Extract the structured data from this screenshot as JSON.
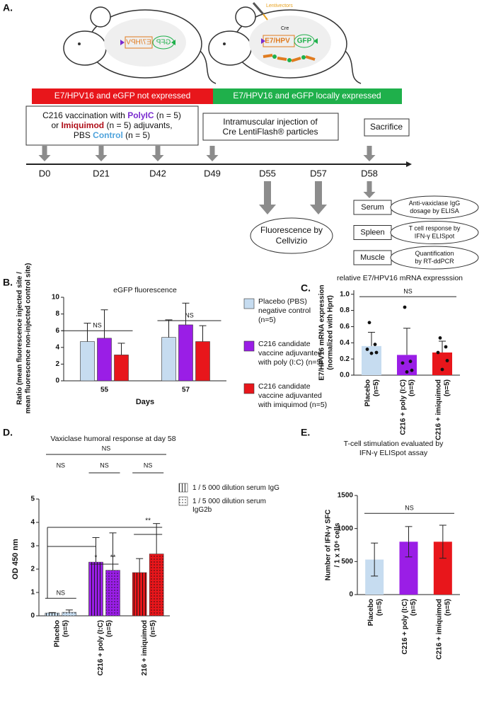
{
  "panel_a": {
    "label": "A.",
    "mouse_left": {
      "gene": "E7/HPV",
      "reporter": "GFP"
    },
    "mouse_right": {
      "vector": "Lentivectors",
      "cre": "Cre",
      "gene": "E7/HPV",
      "reporter": "GFP"
    },
    "phase_off": "E7/HPV16 and eGFP not expressed",
    "phase_on": "E7/HPV16 and eGFP locally expressed",
    "step_vaccination": [
      [
        "C216 vaccination with ",
        "PolyIC",
        " (n = 5)"
      ],
      [
        "or ",
        "Imiquimod",
        " (n = 5) adjuvants,"
      ],
      [
        "PBS ",
        "Control",
        " (n = 5)"
      ]
    ],
    "step_injection": [
      "Intramuscular injection of",
      "Cre LentiFlash® particles"
    ],
    "step_sacrifice": "Sacrifice",
    "days": [
      "D0",
      "D21",
      "D42",
      "D49",
      "D55",
      "D57",
      "D58"
    ],
    "readout": [
      "Fluorescence by",
      "Cellvizio"
    ],
    "analyses": [
      {
        "tissue": "Serum",
        "assay": [
          "Anti-vaxiclase IgG",
          "dosage by ELISA"
        ]
      },
      {
        "tissue": "Spleen",
        "assay": [
          "T cell response by",
          "IFN-γ ELISpot"
        ]
      },
      {
        "tissue": "Muscle",
        "assay": [
          "Quantification",
          "by RT-ddPCR"
        ]
      }
    ]
  },
  "chart_data": [
    {
      "type": "bar",
      "label": "B.",
      "title": "eGFP fluorescence",
      "ylabel": [
        "Ratio (mean fluorescence injected site /",
        "mean fluorescence non-injected control site)"
      ],
      "xlabel": "Days",
      "categories": [
        "55",
        "57"
      ],
      "series": [
        {
          "name": "Placebo (PBS) negative control (n=5)",
          "color": "#c6dcf0",
          "values": [
            4.7,
            5.2
          ],
          "errors": [
            2.2,
            2.1
          ]
        },
        {
          "name": "C216 candidate vaccine adjuvanted with poly (I:C) (n=5)",
          "color": "#9a1ee6",
          "values": [
            5.1,
            6.7
          ],
          "errors": [
            3.4,
            2.6
          ]
        },
        {
          "name": "C216 candidate vaccine adjuvanted with imiquimod (n=5)",
          "color": "#e8161b",
          "values": [
            3.1,
            4.7
          ],
          "errors": [
            1.4,
            1.9
          ]
        }
      ],
      "ylim": [
        0,
        10
      ],
      "yticks": [
        0,
        2,
        4,
        6,
        8,
        10
      ],
      "annotations": [
        "NS",
        "NS"
      ]
    },
    {
      "type": "bar",
      "label": "C.",
      "title": "relative E7/HPV16 mRNA expresssion",
      "ylabel": [
        "E7/HPV16 mRNA expression",
        "(normalized with Hprt)"
      ],
      "categories": [
        "Placebo",
        "C216 + poly (I:C)",
        "C216 + imiquimod"
      ],
      "category_n": [
        "(n=5)",
        "(n=5)",
        "(n=5)"
      ],
      "colors": [
        "#c6dcf0",
        "#9a1ee6",
        "#e8161b"
      ],
      "values": [
        0.36,
        0.25,
        0.28
      ],
      "errors": [
        0.17,
        0.33,
        0.14
      ],
      "points": [
        [
          0.65,
          0.38,
          0.32,
          0.28,
          0.27
        ],
        [
          0.84,
          0.17,
          0.15,
          0.06,
          0.04
        ],
        [
          0.46,
          0.35,
          0.28,
          0.18,
          0.07
        ]
      ],
      "ylim": [
        0,
        1.05
      ],
      "yticks": [
        {
          "value": 0,
          "label": "0.0"
        },
        {
          "value": 0.2,
          "label": "0.2"
        },
        {
          "value": 0.4,
          "label": "0.4"
        },
        {
          "value": 0.6,
          "label": "0.6"
        },
        {
          "value": 0.8,
          "label": "0.8"
        },
        {
          "value": 1,
          "label": "1.0"
        }
      ],
      "annotations": [
        "NS"
      ]
    },
    {
      "type": "bar",
      "label": "D.",
      "title": "Vaxiclase humoral response at day 58",
      "ylabel": "OD 450 nm",
      "categories": [
        "Placebo",
        "C216 + poly (I:C)",
        "216 + imiquimod"
      ],
      "category_n": [
        "(n=5)",
        "(n=5)",
        "(n=5)"
      ],
      "category_colors": [
        "#c6dcf0",
        "#9a1ee6",
        "#e8161b"
      ],
      "series": [
        {
          "name": "1 / 5 000 dilution serum IgG",
          "pattern": "stripes",
          "values": [
            0.12,
            2.3,
            1.85
          ],
          "errors": [
            0.02,
            1.05,
            0.6
          ]
        },
        {
          "name": "1 / 5 000 dilution serum IgG2b",
          "pattern": "dots",
          "values": [
            0.15,
            1.95,
            2.65
          ],
          "errors": [
            0.1,
            1.6,
            1.3
          ]
        }
      ],
      "ylim": [
        0,
        5
      ],
      "yticks": [
        0,
        1,
        2,
        3,
        4,
        5
      ],
      "annotations": [
        "NS",
        "NS",
        "NS",
        "NS",
        "*",
        "**",
        "**"
      ]
    },
    {
      "type": "bar",
      "label": "E.",
      "title": [
        "T-cell stimulation evaluated by",
        "IFN-γ ELISpot assay"
      ],
      "ylabel": [
        "Number of IFN-γ SFC",
        "/ 1 x 10⁶ cells"
      ],
      "categories": [
        "Placebo",
        "C216 + poly (I:C)",
        "C216 + imiquimod"
      ],
      "category_n": [
        "(n=5)",
        "(n=5)",
        "(n=5)"
      ],
      "colors": [
        "#c6dcf0",
        "#9a1ee6",
        "#e8161b"
      ],
      "values": [
        530,
        800,
        800
      ],
      "errors": [
        250,
        230,
        250
      ],
      "ylim": [
        0,
        1500
      ],
      "yticks": [
        0,
        500,
        1000,
        1500
      ],
      "annotations": [
        "NS"
      ]
    }
  ]
}
